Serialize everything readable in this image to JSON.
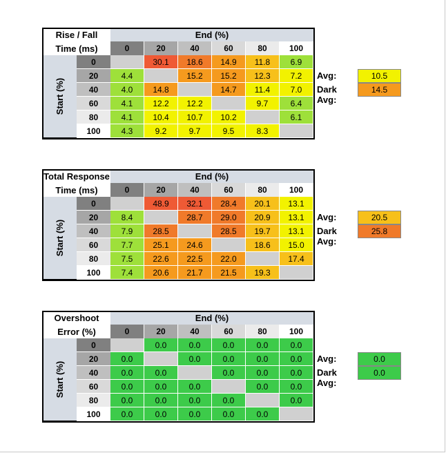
{
  "colors": {
    "header_blue": "#d6dce4",
    "col_header_bg": [
      "#808080",
      "#a6a6a6",
      "#bfbfbf",
      "#d9d9d9",
      "#ebebeb",
      "#ffffff"
    ],
    "diag": "#d0d0d0",
    "green": "#3dcb4a",
    "lime": "#9ee03a",
    "yellow": "#f2f200",
    "gold": "#f7c01a",
    "orange": "#f59a1e",
    "dark_orange": "#f07a2a",
    "red": "#ef5a35"
  },
  "chart_data": [
    {
      "type": "heatmap",
      "title_line1": "Rise / Fall",
      "title_line2": "Time (ms)",
      "xlabel": "End (%)",
      "ylabel": "Start (%)",
      "columns": [
        "0",
        "20",
        "40",
        "60",
        "80",
        "100"
      ],
      "rows": [
        "0",
        "20",
        "40",
        "60",
        "80",
        "100"
      ],
      "values": [
        [
          "",
          "30.1",
          "18.6",
          "14.9",
          "11.8",
          "6.9"
        ],
        [
          "4.4",
          "",
          "15.2",
          "15.2",
          "12.3",
          "7.2"
        ],
        [
          "4.0",
          "14.8",
          "",
          "14.7",
          "11.4",
          "7.0"
        ],
        [
          "4.1",
          "12.2",
          "12.2",
          "",
          "9.7",
          "6.4"
        ],
        [
          "4.1",
          "10.4",
          "10.7",
          "10.2",
          "",
          "6.1"
        ],
        [
          "4.3",
          "9.2",
          "9.7",
          "9.5",
          "8.3",
          ""
        ]
      ],
      "colors": [
        [
          "diag",
          "red",
          "dark_orange",
          "orange",
          "gold",
          "lime"
        ],
        [
          "lime",
          "diag",
          "orange",
          "orange",
          "gold",
          "yellow"
        ],
        [
          "lime",
          "orange",
          "diag",
          "orange",
          "yellow",
          "yellow"
        ],
        [
          "lime",
          "yellow",
          "yellow",
          "diag",
          "yellow",
          "lime"
        ],
        [
          "lime",
          "yellow",
          "yellow",
          "yellow",
          "diag",
          "lime"
        ],
        [
          "lime",
          "yellow",
          "yellow",
          "yellow",
          "yellow",
          "diag"
        ]
      ],
      "avg_label": "Avg:",
      "avg_value": "10.5",
      "avg_color": "yellow",
      "dark_avg_label": "Dark Avg:",
      "dark_avg_value": "14.5",
      "dark_avg_color": "orange"
    },
    {
      "type": "heatmap",
      "title_line1": "Total Response",
      "title_line2": "Time (ms)",
      "xlabel": "End (%)",
      "ylabel": "Start (%)",
      "columns": [
        "0",
        "20",
        "40",
        "60",
        "80",
        "100"
      ],
      "rows": [
        "0",
        "20",
        "40",
        "60",
        "80",
        "100"
      ],
      "values": [
        [
          "",
          "48.9",
          "32.1",
          "28.4",
          "20.1",
          "13.1"
        ],
        [
          "8.4",
          "",
          "28.7",
          "29.0",
          "20.9",
          "13.1"
        ],
        [
          "7.9",
          "28.5",
          "",
          "28.5",
          "19.7",
          "13.1"
        ],
        [
          "7.7",
          "25.1",
          "24.6",
          "",
          "18.6",
          "15.0"
        ],
        [
          "7.5",
          "22.6",
          "22.5",
          "22.0",
          "",
          "17.4"
        ],
        [
          "7.4",
          "20.6",
          "21.7",
          "21.5",
          "19.3",
          ""
        ]
      ],
      "colors": [
        [
          "diag",
          "red",
          "red",
          "dark_orange",
          "gold",
          "yellow"
        ],
        [
          "lime",
          "diag",
          "dark_orange",
          "dark_orange",
          "gold",
          "yellow"
        ],
        [
          "lime",
          "dark_orange",
          "diag",
          "dark_orange",
          "gold",
          "yellow"
        ],
        [
          "lime",
          "orange",
          "orange",
          "diag",
          "gold",
          "yellow"
        ],
        [
          "lime",
          "orange",
          "orange",
          "orange",
          "diag",
          "gold"
        ],
        [
          "lime",
          "orange",
          "orange",
          "orange",
          "gold",
          "diag"
        ]
      ],
      "avg_label": "Avg:",
      "avg_value": "20.5",
      "avg_color": "gold",
      "dark_avg_label": "Dark Avg:",
      "dark_avg_value": "25.8",
      "dark_avg_color": "dark_orange"
    },
    {
      "type": "heatmap",
      "title_line1": "Overshoot",
      "title_line2": "Error (%)",
      "xlabel": "End (%)",
      "ylabel": "Start (%)",
      "columns": [
        "0",
        "20",
        "40",
        "60",
        "80",
        "100"
      ],
      "rows": [
        "0",
        "20",
        "40",
        "60",
        "80",
        "100"
      ],
      "values": [
        [
          "",
          "0.0",
          "0.0",
          "0.0",
          "0.0",
          "0.0"
        ],
        [
          "0.0",
          "",
          "0.0",
          "0.0",
          "0.0",
          "0.0"
        ],
        [
          "0.0",
          "0.0",
          "",
          "0.0",
          "0.0",
          "0.0"
        ],
        [
          "0.0",
          "0.0",
          "0.0",
          "",
          "0.0",
          "0.0"
        ],
        [
          "0.0",
          "0.0",
          "0.0",
          "0.0",
          "",
          "0.0"
        ],
        [
          "0.0",
          "0.0",
          "0.0",
          "0.0",
          "0.0",
          ""
        ]
      ],
      "colors": [
        [
          "diag",
          "green",
          "green",
          "green",
          "green",
          "green"
        ],
        [
          "green",
          "diag",
          "green",
          "green",
          "green",
          "green"
        ],
        [
          "green",
          "green",
          "diag",
          "green",
          "green",
          "green"
        ],
        [
          "green",
          "green",
          "green",
          "diag",
          "green",
          "green"
        ],
        [
          "green",
          "green",
          "green",
          "green",
          "diag",
          "green"
        ],
        [
          "green",
          "green",
          "green",
          "green",
          "green",
          "diag"
        ]
      ],
      "avg_label": "Avg:",
      "avg_value": "0.0",
      "avg_color": "green",
      "dark_avg_label": "Dark Avg:",
      "dark_avg_value": "0.0",
      "dark_avg_color": "green"
    }
  ]
}
